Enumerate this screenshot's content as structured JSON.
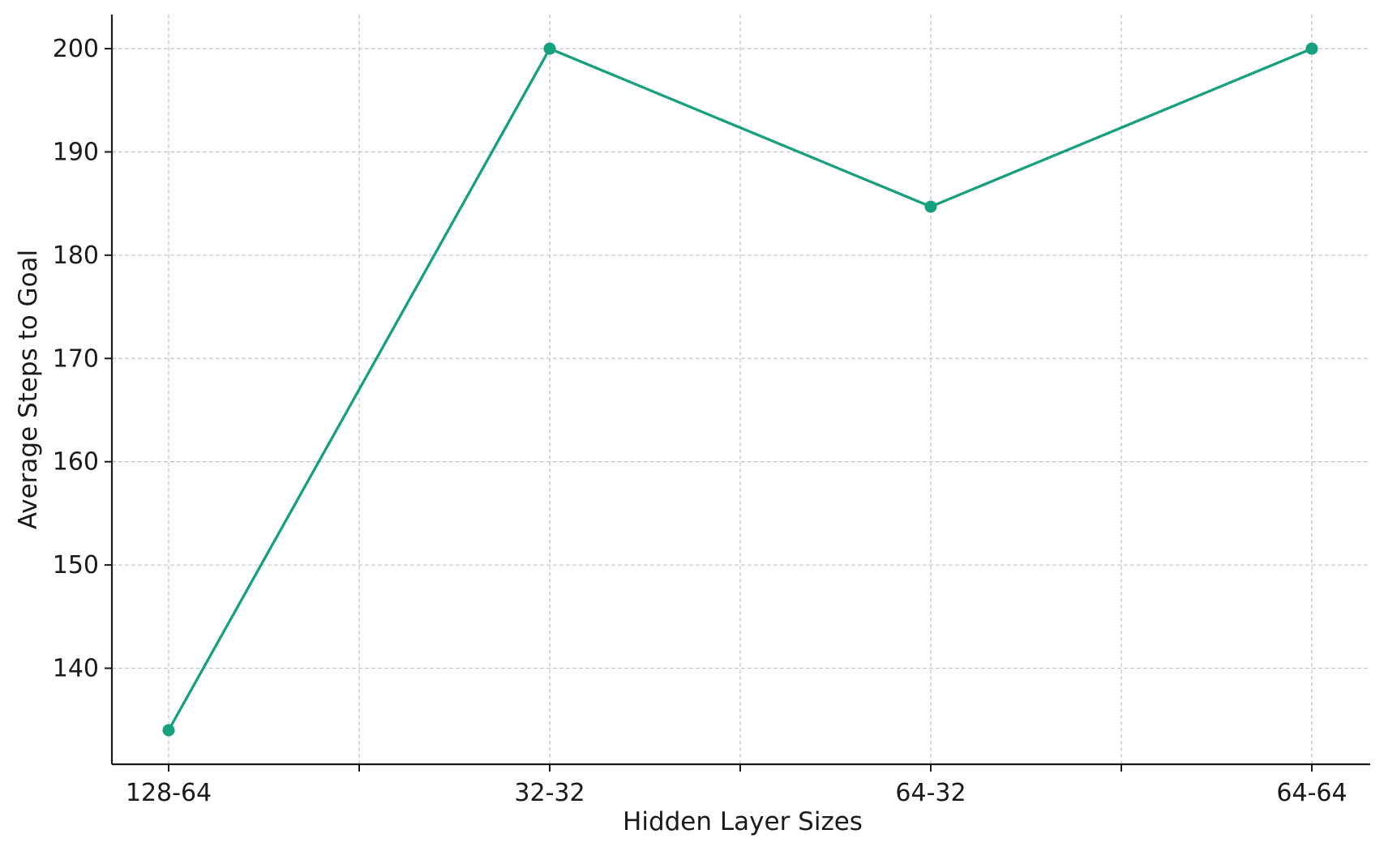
{
  "chart_data": {
    "type": "line",
    "title": "",
    "xlabel": "Hidden Layer Sizes",
    "ylabel": "Average Steps to Goal",
    "categories": [
      "128-64",
      "32-32",
      "64-32",
      "64-64"
    ],
    "series": [
      {
        "values": [
          134,
          200,
          184.7,
          200
        ],
        "color": "#17a07e",
        "marker": "circle"
      }
    ],
    "y_ticks": [
      140,
      150,
      160,
      170,
      180,
      190,
      200
    ],
    "ylim": [
      130.7,
      203.3
    ],
    "grid": true,
    "legend": "none"
  }
}
